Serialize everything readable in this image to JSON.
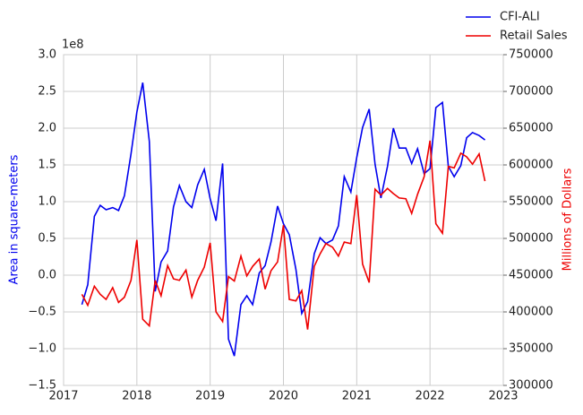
{
  "chart_data": {
    "type": "line",
    "y_label": "Area in square-meters",
    "y2_label": "Millions of Dollars",
    "y_offset_label": "1e8",
    "x": [
      2017.25,
      2017.33,
      2017.42,
      2017.5,
      2017.58,
      2017.67,
      2017.75,
      2017.83,
      2017.92,
      2018,
      2018.08,
      2018.17,
      2018.25,
      2018.33,
      2018.42,
      2018.5,
      2018.58,
      2018.67,
      2018.75,
      2018.83,
      2018.92,
      2019,
      2019.08,
      2019.17,
      2019.25,
      2019.33,
      2019.42,
      2019.5,
      2019.58,
      2019.67,
      2019.75,
      2019.83,
      2019.92,
      2020,
      2020.08,
      2020.17,
      2020.25,
      2020.33,
      2020.42,
      2020.5,
      2020.58,
      2020.67,
      2020.75,
      2020.83,
      2020.92,
      2021,
      2021.08,
      2021.17,
      2021.25,
      2021.33,
      2021.42,
      2021.5,
      2021.58,
      2021.67,
      2021.75,
      2021.83,
      2021.92,
      2022,
      2022.08,
      2022.17,
      2022.25,
      2022.33,
      2022.42,
      2022.5,
      2022.58,
      2022.67,
      2022.75
    ],
    "series": [
      {
        "name": "CFI-ALI",
        "color": "#0000ee",
        "axis": "y",
        "values": [
          -0.4,
          -0.13,
          0.8,
          0.95,
          0.89,
          0.92,
          0.88,
          1.08,
          1.65,
          2.22,
          2.62,
          1.82,
          -0.22,
          0.18,
          0.33,
          0.93,
          1.22,
          1.0,
          0.92,
          1.23,
          1.44,
          1.04,
          0.74,
          1.52,
          -0.87,
          -1.1,
          -0.4,
          -0.28,
          -0.4,
          0.03,
          0.13,
          0.45,
          0.94,
          0.7,
          0.55,
          0.08,
          -0.52,
          -0.36,
          0.29,
          0.51,
          0.43,
          0.48,
          0.67,
          1.34,
          1.13,
          1.6,
          2.01,
          2.26,
          1.51,
          1.05,
          1.48,
          2.0,
          1.73,
          1.73,
          1.52,
          1.72,
          1.38,
          1.45,
          2.28,
          2.35,
          1.48,
          1.34,
          1.49,
          1.87,
          1.94,
          1.9,
          1.84
        ]
      },
      {
        "name": "Retail Sales",
        "color": "#ee0000",
        "axis": "y2",
        "values": [
          424000,
          409000,
          435000,
          424000,
          417000,
          433000,
          413000,
          420000,
          443000,
          498000,
          390000,
          381000,
          443000,
          422000,
          463000,
          445000,
          443000,
          457000,
          420000,
          443000,
          461000,
          494000,
          400000,
          387000,
          448000,
          442000,
          476000,
          449000,
          462000,
          472000,
          431000,
          456000,
          468000,
          518000,
          417000,
          415000,
          429000,
          376000,
          462000,
          479000,
          493000,
          488000,
          476000,
          495000,
          493000,
          559000,
          465000,
          440000,
          567000,
          559000,
          568000,
          561000,
          555000,
          554000,
          534000,
          560000,
          584000,
          633000,
          520000,
          507000,
          598000,
          596000,
          616000,
          611000,
          601000,
          615000,
          578000
        ]
      }
    ],
    "xlim": [
      2017,
      2023
    ],
    "xticks": [
      2017,
      2018,
      2019,
      2020,
      2021,
      2022,
      2023
    ],
    "ylim": [
      -1.5,
      3
    ],
    "yticks": [
      {
        "value": -1.5,
        "label": "−1.5"
      },
      {
        "value": -1,
        "label": "−1.0"
      },
      {
        "value": -0.5,
        "label": "−0.5"
      },
      {
        "value": 0,
        "label": "0.0"
      },
      {
        "value": 0.5,
        "label": "0.5"
      },
      {
        "value": 1,
        "label": "1.0"
      },
      {
        "value": 1.5,
        "label": "1.5"
      },
      {
        "value": 2,
        "label": "2.0"
      },
      {
        "value": 2.5,
        "label": "2.5"
      },
      {
        "value": 3,
        "label": "3.0"
      }
    ],
    "y2lim": [
      300000,
      750000
    ],
    "y2ticks": [
      300000,
      350000,
      400000,
      450000,
      500000,
      550000,
      600000,
      650000,
      700000,
      750000
    ],
    "grid": true,
    "legend": "upper right"
  }
}
